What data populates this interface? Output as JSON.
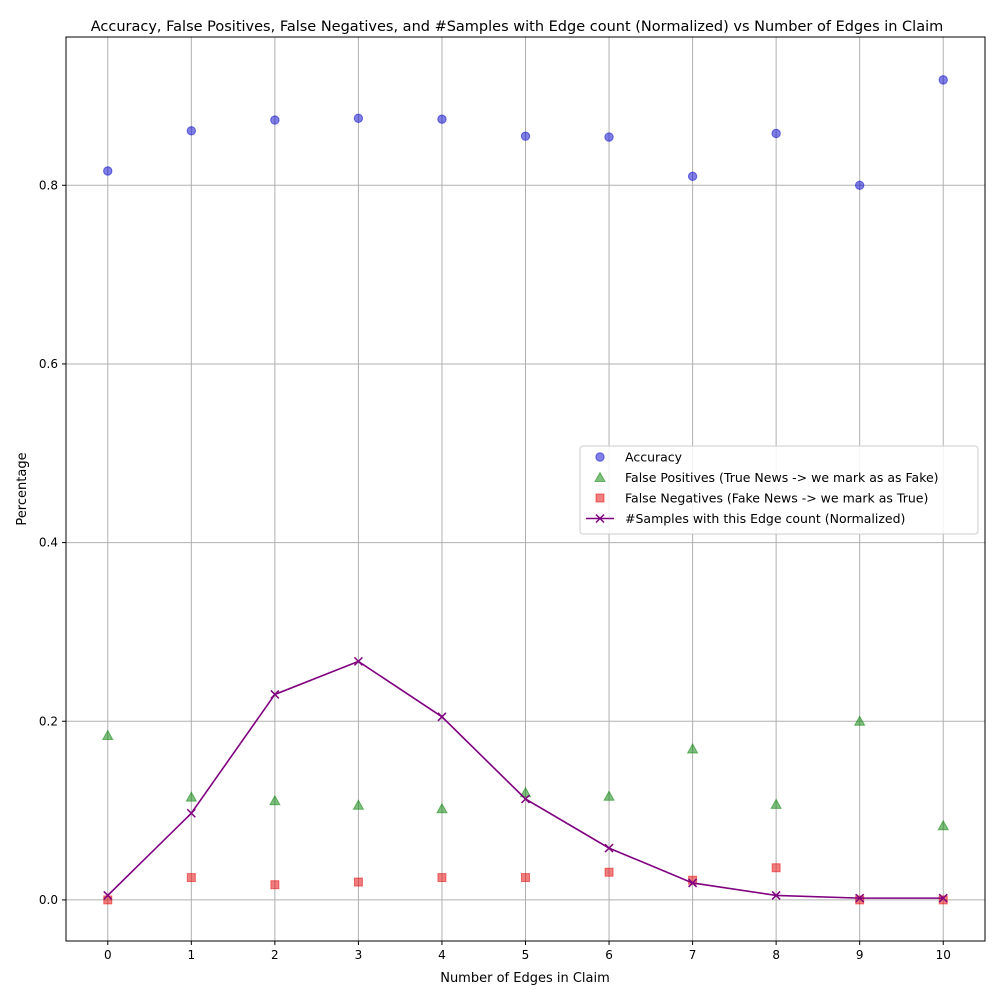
{
  "chart_data": {
    "type": "scatter",
    "title": "Accuracy, False Positives, False Negatives, and  #Samples with Edge count (Normalized) vs Number of Edges in Claim",
    "xlabel": "Number of Edges in Claim",
    "ylabel": "Percentage",
    "x": [
      0,
      1,
      2,
      3,
      4,
      5,
      6,
      7,
      8,
      9,
      10
    ],
    "xlim": [
      -0.5,
      10.5
    ],
    "ylim": [
      -0.046,
      0.966
    ],
    "xticks": [
      0,
      1,
      2,
      3,
      4,
      5,
      6,
      7,
      8,
      9,
      10
    ],
    "yticks": [
      0.0,
      0.2,
      0.4,
      0.6,
      0.8
    ],
    "ytick_labels": [
      "0.0",
      "0.2",
      "0.4",
      "0.6",
      "0.8"
    ],
    "grid": true,
    "legend_position": "center-right",
    "series": [
      {
        "name": "Accuracy",
        "kind": "scatter",
        "marker": "circle",
        "color": "#0000cc",
        "alpha": 0.5,
        "values": [
          0.816,
          0.861,
          0.873,
          0.875,
          0.874,
          0.855,
          0.854,
          0.81,
          0.858,
          0.8,
          0.918
        ]
      },
      {
        "name": "False Positives (True News -> we mark as as Fake)",
        "kind": "scatter",
        "marker": "triangle",
        "color": "#008000",
        "alpha": 0.5,
        "values": [
          0.184,
          0.115,
          0.111,
          0.106,
          0.102,
          0.12,
          0.116,
          0.169,
          0.107,
          0.2,
          0.083
        ]
      },
      {
        "name": "False Negatives (Fake News -> we mark as True)",
        "kind": "scatter",
        "marker": "square",
        "color": "#e60000",
        "alpha": 0.5,
        "values": [
          0.0,
          0.025,
          0.017,
          0.02,
          0.025,
          0.025,
          0.031,
          0.022,
          0.036,
          0.0,
          0.0
        ]
      },
      {
        "name": "#Samples with this Edge count (Normalized)",
        "kind": "line",
        "marker": "x",
        "color": "#800080",
        "alpha": 1.0,
        "values": [
          0.005,
          0.097,
          0.23,
          0.267,
          0.205,
          0.113,
          0.058,
          0.019,
          0.005,
          0.002,
          0.002
        ]
      }
    ]
  }
}
